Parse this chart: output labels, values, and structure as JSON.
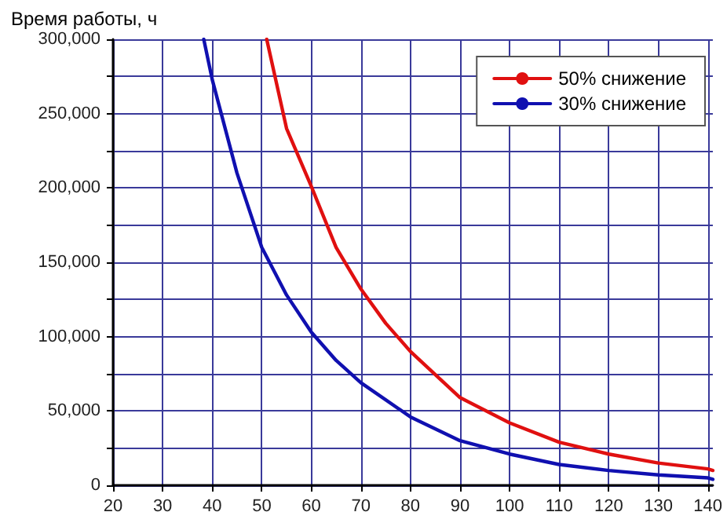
{
  "chart_data": {
    "type": "line",
    "ylabel": "Время работы, ч",
    "xlim": [
      20,
      141
    ],
    "xticks": [
      20,
      30,
      40,
      50,
      60,
      70,
      80,
      90,
      100,
      110,
      120,
      130,
      140
    ],
    "ylim": [
      0,
      300000
    ],
    "yticks": [
      {
        "value": 0,
        "label": "0"
      },
      {
        "value": 25000,
        "label": null
      },
      {
        "value": 50000,
        "label": "50,000"
      },
      {
        "value": 75000,
        "label": null
      },
      {
        "value": 100000,
        "label": "100,000"
      },
      {
        "value": 125000,
        "label": null
      },
      {
        "value": 150000,
        "label": "150,000"
      },
      {
        "value": 175000,
        "label": null
      },
      {
        "value": 200000,
        "label": "200,000"
      },
      {
        "value": 225000,
        "label": null
      },
      {
        "value": 250000,
        "label": "250,000"
      },
      {
        "value": 275000,
        "label": null
      },
      {
        "value": 300000,
        "label": "300,000"
      }
    ],
    "grid": true,
    "legend": "top right",
    "marker": "none",
    "line_style": "solid",
    "series": [
      {
        "name": "50% снижение",
        "color": "#e01010",
        "x": [
          51,
          55,
          60,
          65,
          70,
          75,
          80,
          90,
          100,
          110,
          120,
          130,
          140,
          141
        ],
        "values": [
          300000,
          240000,
          201000,
          160000,
          132000,
          109000,
          90000,
          59000,
          42000,
          29000,
          21000,
          15000,
          11000,
          10000
        ]
      },
      {
        "name": "30% снижение",
        "color": "#1010b0",
        "x": [
          38.3,
          40,
          45,
          50,
          55,
          60,
          65,
          70,
          80,
          90,
          100,
          110,
          120,
          130,
          140,
          141
        ],
        "values": [
          300000,
          273000,
          210000,
          160000,
          128000,
          103000,
          84000,
          69000,
          46000,
          30000,
          21000,
          14000,
          10000,
          7000,
          5000,
          4000
        ]
      }
    ]
  }
}
